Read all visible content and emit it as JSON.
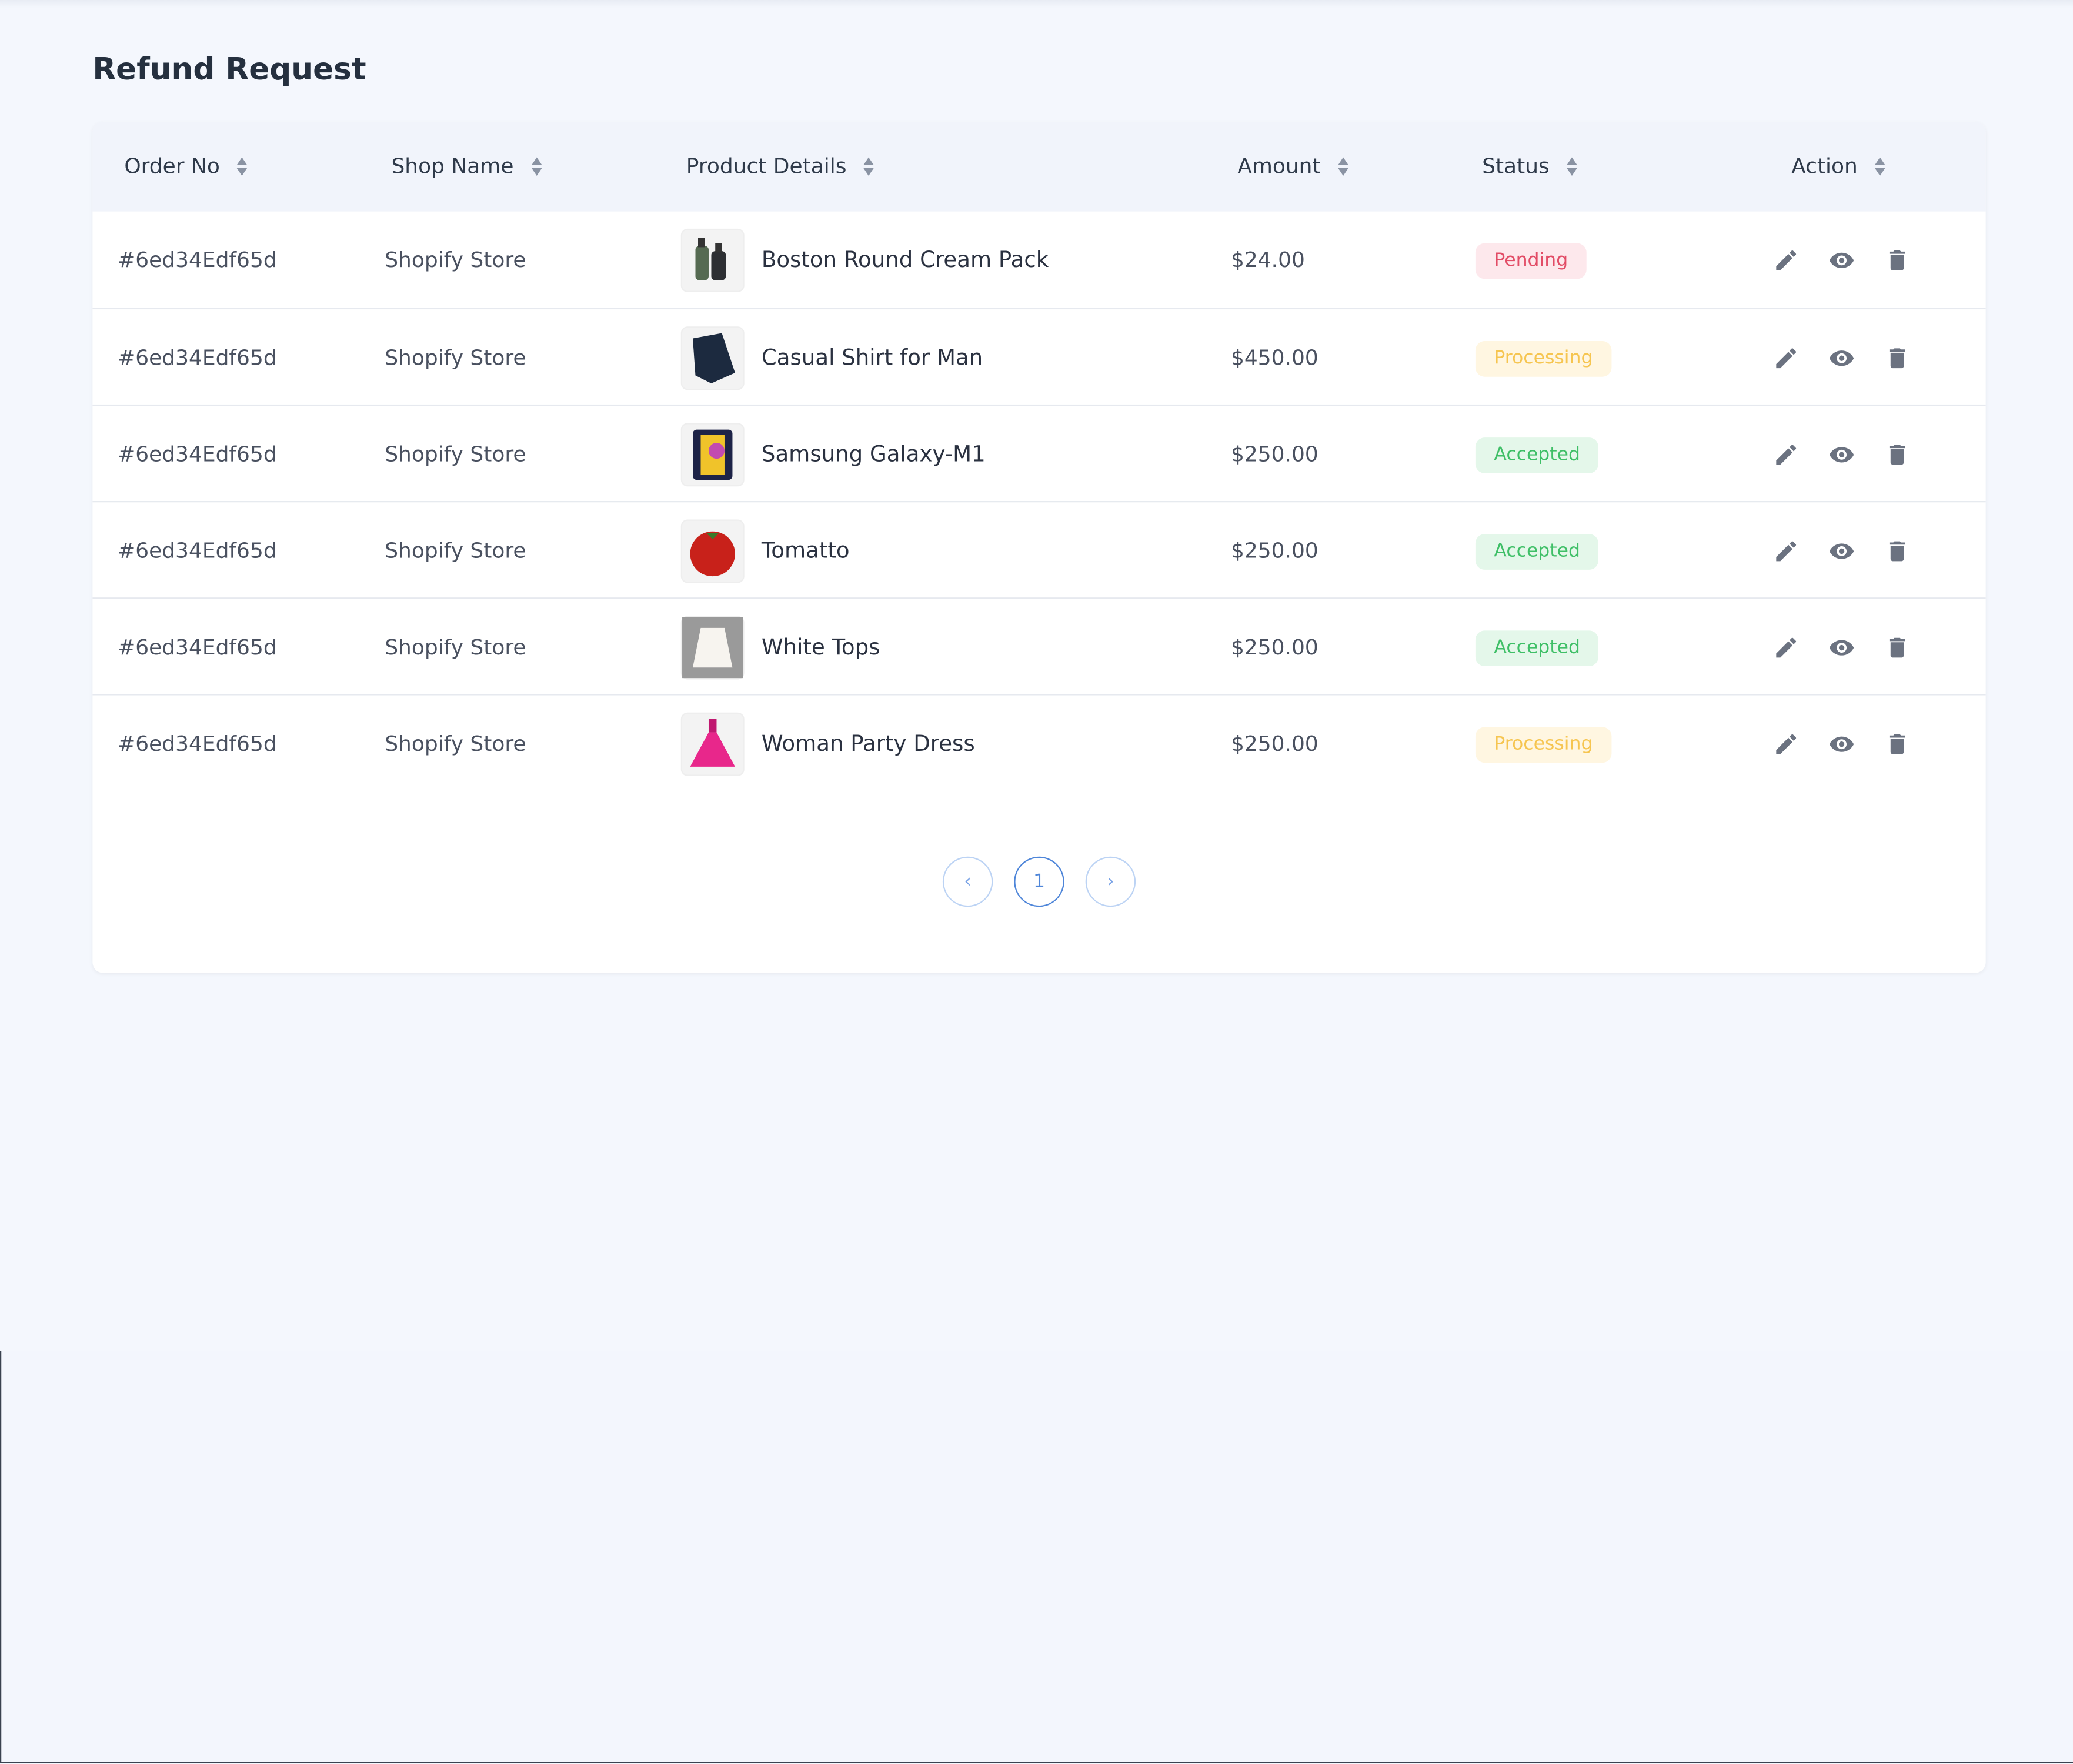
{
  "header": {
    "title": "Refund Request"
  },
  "table": {
    "columns": [
      "Order No",
      "Shop Name",
      "Product Details",
      "Amount",
      "Status",
      "Action"
    ],
    "rows": [
      [
        "#6ed34Edf65d",
        "Shopify Store",
        "Boston Round Cream Pack",
        "$24.00",
        "Pending"
      ],
      [
        "#6ed34Edf65d",
        "Shopify Store",
        "Casual Shirt for Man",
        "$450.00",
        "Processing"
      ],
      [
        "#6ed34Edf65d",
        "Shopify Store",
        "Samsung Galaxy-M1",
        "$250.00",
        "Accepted"
      ],
      [
        "#6ed34Edf65d",
        "Shopify Store",
        "Tomatto",
        "$250.00",
        "Accepted"
      ],
      [
        "#6ed34Edf65d",
        "Shopify Store",
        "White Tops",
        "$250.00",
        "Accepted"
      ],
      [
        "#6ed34Edf65d",
        "Shopify Store",
        "Woman Party Dress",
        "$250.00",
        "Processing"
      ]
    ]
  },
  "pagination": {
    "current": "1"
  }
}
